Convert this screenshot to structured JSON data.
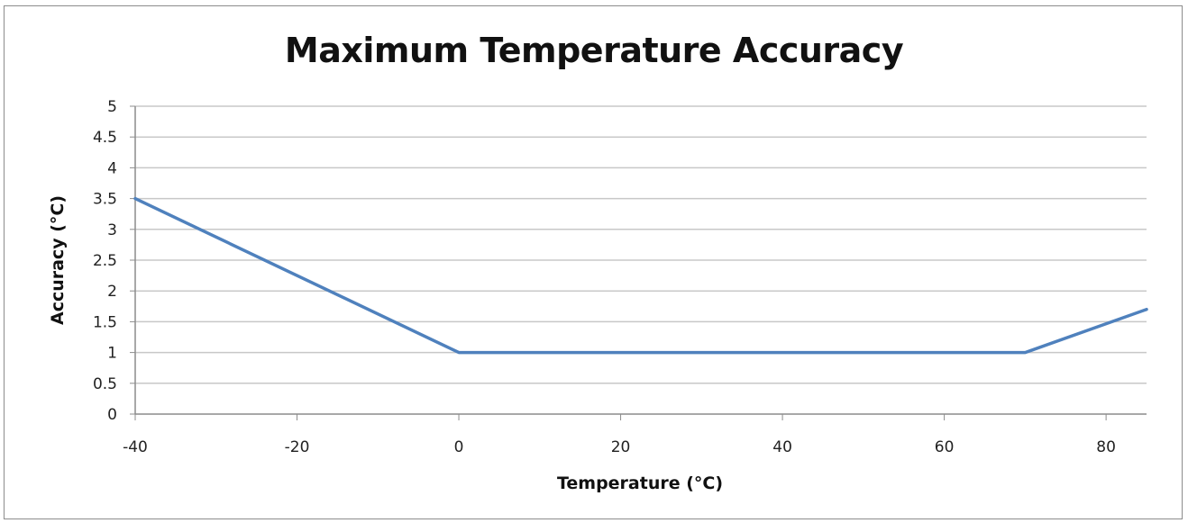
{
  "chart_data": {
    "type": "line",
    "title": "Maximum Temperature Accuracy",
    "xlabel": "Temperature (°C)",
    "ylabel": "Accuracy (°C)",
    "xlim": [
      -40,
      85
    ],
    "ylim": [
      0,
      5
    ],
    "xticks": [
      "-40",
      "-20",
      "0",
      "20",
      "40",
      "60",
      "80"
    ],
    "yticks": [
      "0",
      "0.5",
      "1",
      "1.5",
      "2",
      "2.5",
      "3",
      "3.5",
      "4",
      "4.5",
      "5"
    ],
    "xtick_values": [
      -40,
      -20,
      0,
      20,
      40,
      60,
      80
    ],
    "ytick_values": [
      0,
      0.5,
      1,
      1.5,
      2,
      2.5,
      3,
      3.5,
      4,
      4.5,
      5
    ],
    "grid": true,
    "legend": "none",
    "series": [
      {
        "color": "#4f81bd",
        "x": [
          -40,
          0,
          70,
          85
        ],
        "y": [
          3.5,
          1,
          1,
          1.7
        ]
      }
    ],
    "colors": {
      "grid": "#c8c8c8",
      "axis": "#8c8c8c",
      "frame": "#8c8c8c"
    }
  }
}
